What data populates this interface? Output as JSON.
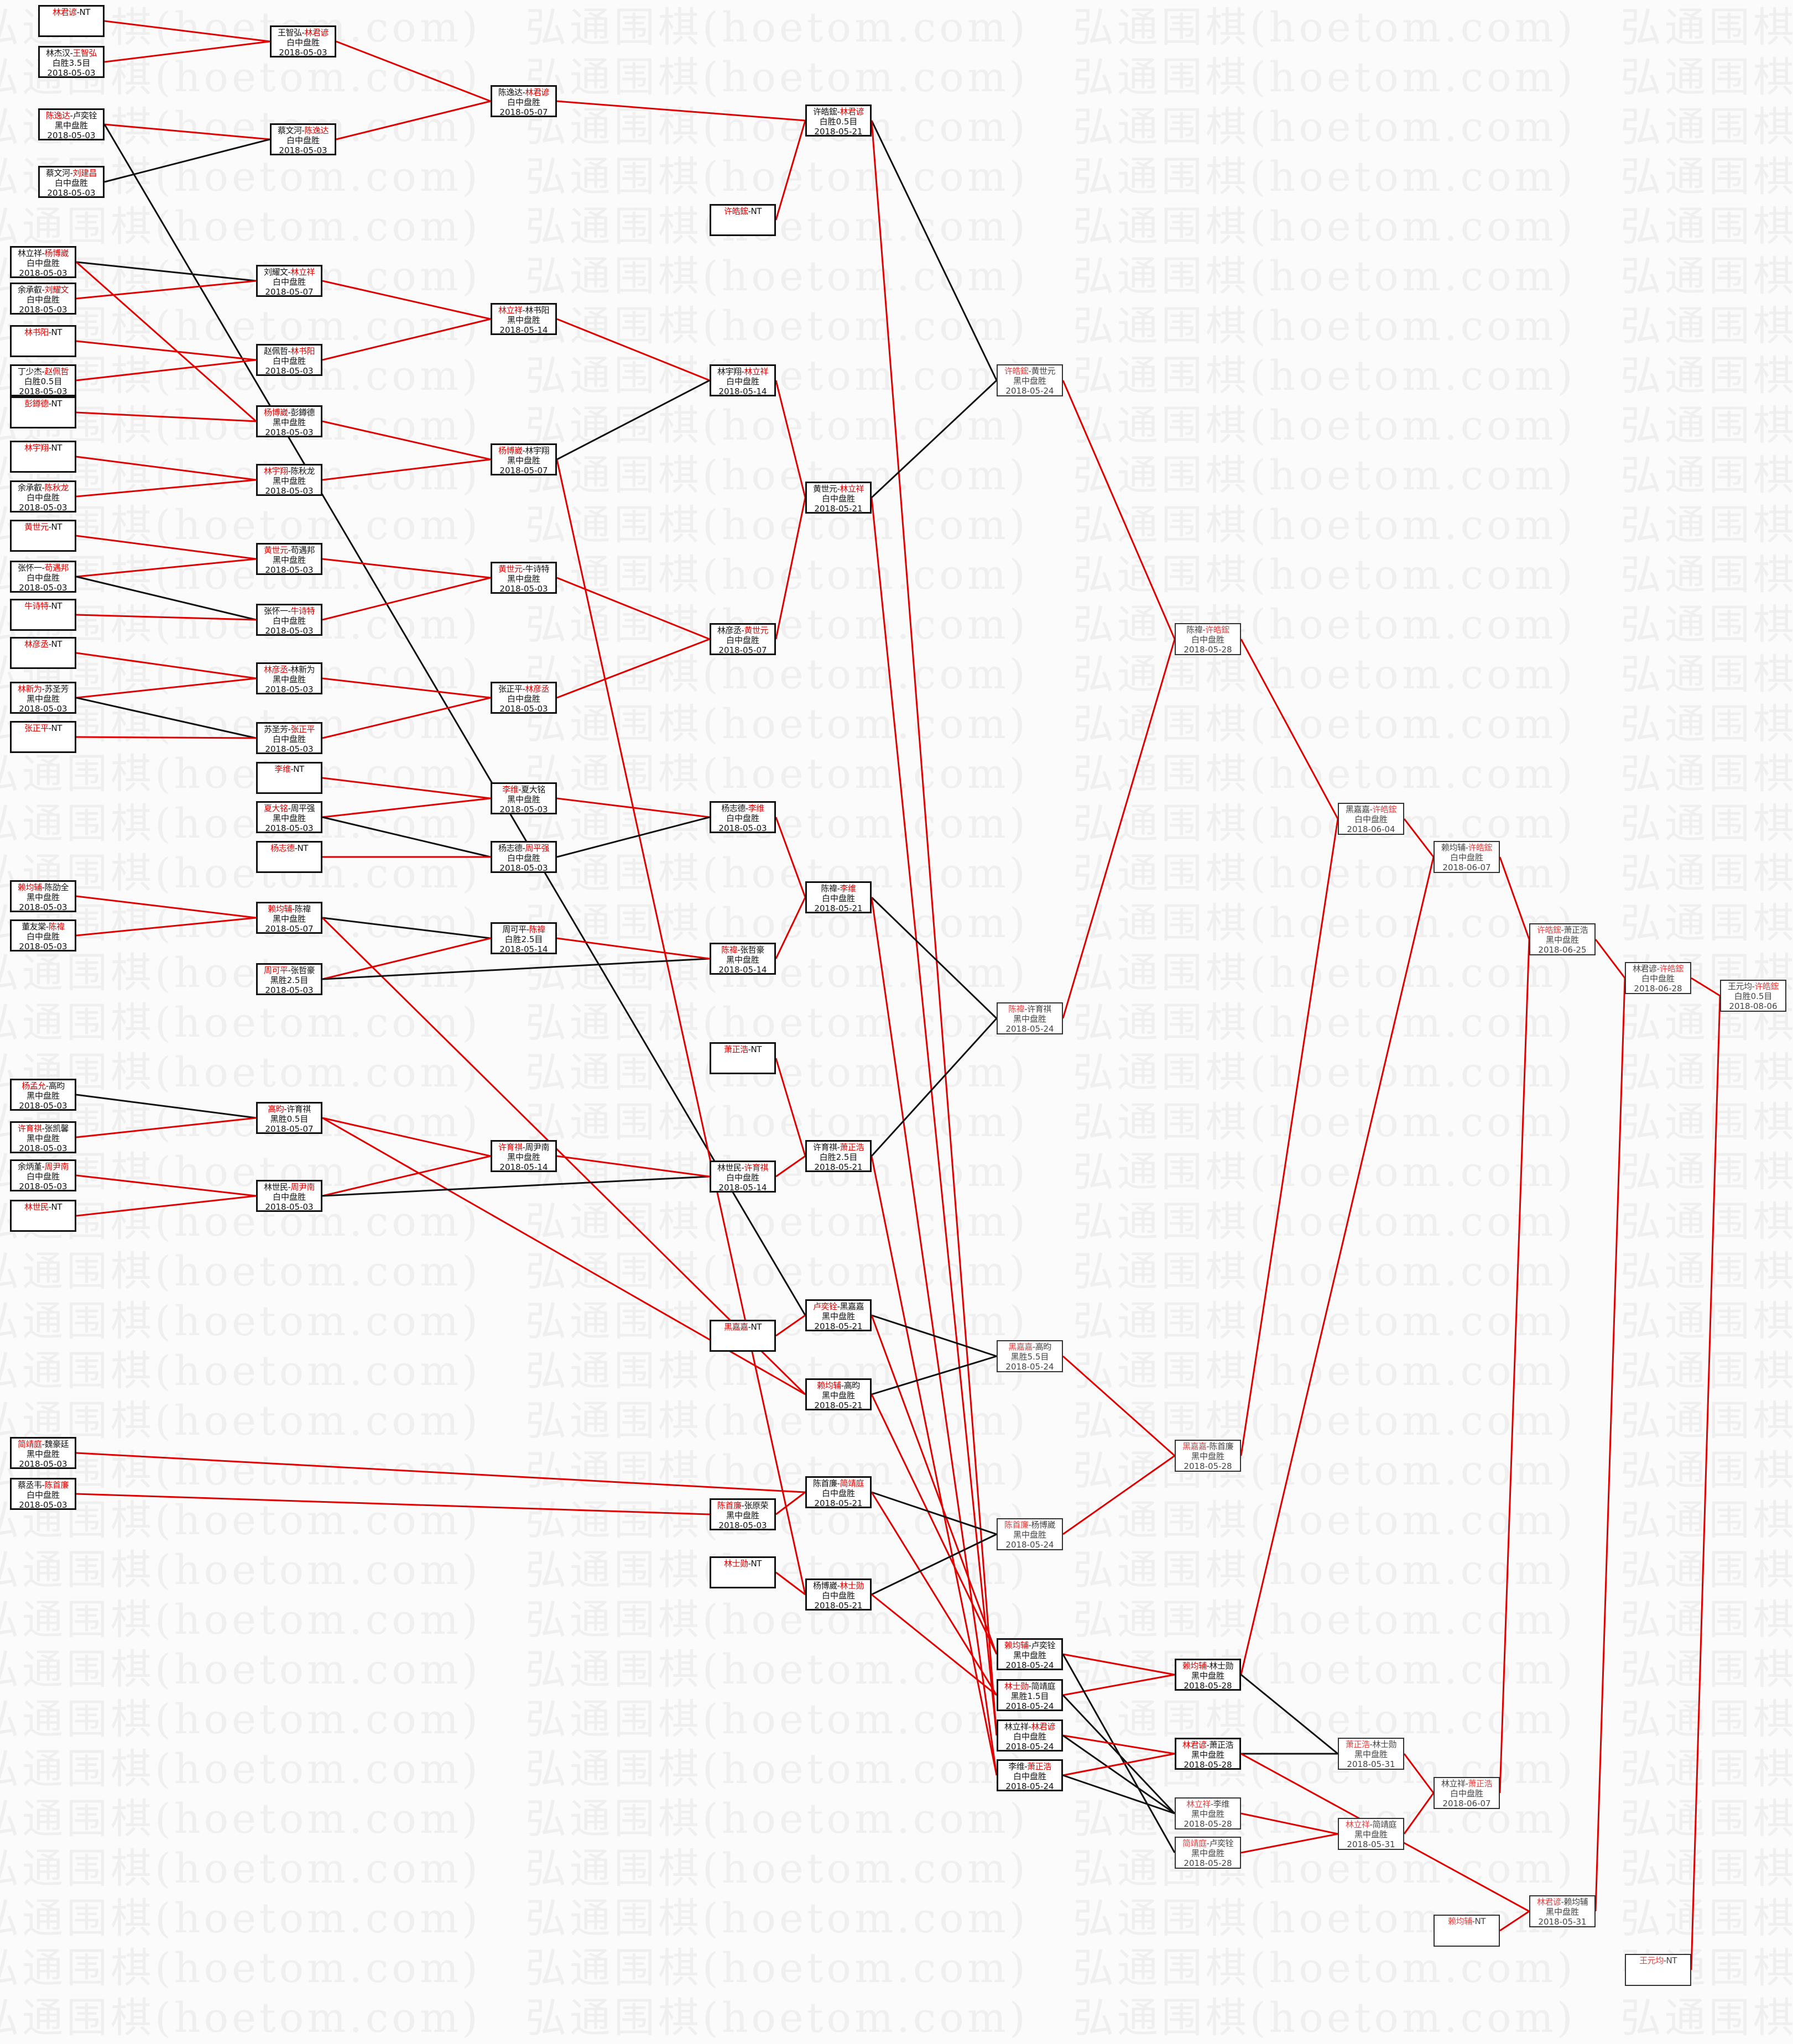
{
  "watermark": "弘通围棋(hoetom.com)",
  "colors": {
    "winner_text": "#e00000",
    "win_line": "#e00000",
    "lose_line": "#111111",
    "box_border": "#111111"
  },
  "matches": [
    {
      "id": "a1",
      "p1": "林君谚",
      "p2": "NT",
      "red": 1
    },
    {
      "id": "a2",
      "p1": "林杰汉",
      "p2": "王智弘",
      "red": 2,
      "result": "白胜3.5目",
      "date": "2018-05-03"
    },
    {
      "id": "a3",
      "p1": "陈逸达",
      "p2": "卢奕铨",
      "red": 1,
      "result": "黑中盘胜",
      "date": "2018-05-03"
    },
    {
      "id": "a4",
      "p1": "蔡文河",
      "p2": "刘建昌",
      "red": 2,
      "result": "白中盘胜",
      "date": "2018-05-03"
    },
    {
      "id": "a5",
      "p1": "林立祥",
      "p2": "杨博崴",
      "red": 2,
      "result": "白中盘胜",
      "date": "2018-05-03"
    },
    {
      "id": "a6",
      "p1": "余承叡",
      "p2": "刘耀文",
      "red": 2,
      "result": "白中盘胜",
      "date": "2018-05-03"
    },
    {
      "id": "a7",
      "p1": "林书阳",
      "p2": "NT",
      "red": 1
    },
    {
      "id": "a8",
      "p1": "丁少杰",
      "p2": "赵佩哲",
      "red": 2,
      "result": "白胜0.5目",
      "date": "2018-05-03"
    },
    {
      "id": "a9",
      "p1": "彭鐏德",
      "p2": "NT",
      "red": 1
    },
    {
      "id": "a10",
      "p1": "林宇翔",
      "p2": "NT",
      "red": 1
    },
    {
      "id": "a11",
      "p1": "余承叡",
      "p2": "陈秋龙",
      "red": 2,
      "result": "白中盘胜",
      "date": "2018-05-03"
    },
    {
      "id": "a12",
      "p1": "黄世元",
      "p2": "NT",
      "red": 1
    },
    {
      "id": "a13",
      "p1": "张怀一",
      "p2": "苟遇邦",
      "red": 2,
      "result": "白中盘胜",
      "date": "2018-05-03"
    },
    {
      "id": "a14",
      "p1": "牛诗特",
      "p2": "NT",
      "red": 1
    },
    {
      "id": "a15",
      "p1": "林彦丞",
      "p2": "NT",
      "red": 1
    },
    {
      "id": "a16",
      "p1": "林新为",
      "p2": "苏圣芳",
      "red": 1,
      "result": "黑中盘胜",
      "date": "2018-05-03"
    },
    {
      "id": "a17",
      "p1": "张正平",
      "p2": "NT",
      "red": 1
    },
    {
      "id": "a18",
      "p1": "赖均辅",
      "p2": "陈劭全",
      "red": 1,
      "result": "黑中盘胜",
      "date": "2018-05-03"
    },
    {
      "id": "a19",
      "p1": "董友棠",
      "p2": "陈禕",
      "red": 2,
      "result": "白中盘胜",
      "date": "2018-05-03"
    },
    {
      "id": "a20",
      "p1": "杨孟允",
      "p2": "高昀",
      "red": 1,
      "result": "黑中盘胜",
      "date": "2018-05-03"
    },
    {
      "id": "a21",
      "p1": "许育祺",
      "p2": "张凯馨",
      "red": 1,
      "result": "黑中盘胜",
      "date": "2018-05-03"
    },
    {
      "id": "a22",
      "p1": "余炳堇",
      "p2": "周尹南",
      "red": 2,
      "result": "白中盘胜",
      "date": "2018-05-03"
    },
    {
      "id": "a23",
      "p1": "林世民",
      "p2": "NT",
      "red": 1
    },
    {
      "id": "a24",
      "p1": "简靖庭",
      "p2": "魏豪廷",
      "red": 1,
      "result": "黑中盘胜",
      "date": "2018-05-03"
    },
    {
      "id": "a25",
      "p1": "蔡丞韦",
      "p2": "陈首廉",
      "red": 2,
      "result": "白中盘胜",
      "date": "2018-05-03"
    },
    {
      "id": "b1",
      "p1": "王智弘",
      "p2": "林君谚",
      "red": 2,
      "result": "白中盘胜",
      "date": "2018-05-03"
    },
    {
      "id": "b2",
      "p1": "蔡文河",
      "p2": "陈逸达",
      "red": 2,
      "result": "白中盘胜",
      "date": "2018-05-03"
    },
    {
      "id": "b3",
      "p1": "刘耀文",
      "p2": "林立祥",
      "red": 2,
      "result": "白中盘胜",
      "date": "2018-05-07"
    },
    {
      "id": "b4",
      "p1": "赵佩哲",
      "p2": "林书阳",
      "red": 2,
      "result": "白中盘胜",
      "date": "2018-05-03"
    },
    {
      "id": "b5",
      "p1": "杨博崴",
      "p2": "彭鐏德",
      "red": 1,
      "result": "黑中盘胜",
      "date": "2018-05-03"
    },
    {
      "id": "b6",
      "p1": "林宇翔",
      "p2": "陈秋龙",
      "red": 1,
      "result": "黑中盘胜",
      "date": "2018-05-03"
    },
    {
      "id": "b7",
      "p1": "黄世元",
      "p2": "苟遇邦",
      "red": 1,
      "result": "黑中盘胜",
      "date": "2018-05-03"
    },
    {
      "id": "b8",
      "p1": "张怀一",
      "p2": "牛诗特",
      "red": 2,
      "result": "白中盘胜",
      "date": "2018-05-03"
    },
    {
      "id": "b9",
      "p1": "林彦丞",
      "p2": "林新为",
      "red": 1,
      "result": "黑中盘胜",
      "date": "2018-05-03"
    },
    {
      "id": "b10",
      "p1": "苏圣芳",
      "p2": "张正平",
      "red": 2,
      "result": "白中盘胜",
      "date": "2018-05-03"
    },
    {
      "id": "b11",
      "p1": "李维",
      "p2": "NT",
      "red": 1
    },
    {
      "id": "b12",
      "p1": "夏大铭",
      "p2": "周平强",
      "red": 1,
      "result": "黑中盘胜",
      "date": "2018-05-03"
    },
    {
      "id": "b13",
      "p1": "杨志德",
      "p2": "NT",
      "red": 1
    },
    {
      "id": "b14",
      "p1": "赖均辅",
      "p2": "陈禕",
      "red": 1,
      "result": "黑中盘胜",
      "date": "2018-05-07"
    },
    {
      "id": "b15",
      "p1": "周可平",
      "p2": "张哲豪",
      "red": 1,
      "result": "黑胜2.5目",
      "date": "2018-05-03"
    },
    {
      "id": "b16",
      "p1": "高昀",
      "p2": "许育祺",
      "red": 1,
      "result": "黑胜0.5目",
      "date": "2018-05-07"
    },
    {
      "id": "b17",
      "p1": "林世民",
      "p2": "周尹南",
      "red": 2,
      "result": "白中盘胜",
      "date": "2018-05-03"
    },
    {
      "id": "c1",
      "p1": "陈逸达",
      "p2": "林君谚",
      "red": 2,
      "result": "白中盘胜",
      "date": "2018-05-07"
    },
    {
      "id": "c2",
      "p1": "林立祥",
      "p2": "林书阳",
      "red": 1,
      "result": "黑中盘胜",
      "date": "2018-05-14"
    },
    {
      "id": "c3",
      "p1": "杨博崴",
      "p2": "林宇翔",
      "red": 1,
      "result": "黑中盘胜",
      "date": "2018-05-07"
    },
    {
      "id": "c4",
      "p1": "黄世元",
      "p2": "牛诗特",
      "red": 1,
      "result": "黑中盘胜",
      "date": "2018-05-03"
    },
    {
      "id": "c5",
      "p1": "张正平",
      "p2": "林彦丞",
      "red": 2,
      "result": "白中盘胜",
      "date": "2018-05-03"
    },
    {
      "id": "c6",
      "p1": "李维",
      "p2": "夏大铭",
      "red": 1,
      "result": "黑中盘胜",
      "date": "2018-05-03"
    },
    {
      "id": "c7",
      "p1": "杨志德",
      "p2": "周平强",
      "red": 2,
      "result": "白中盘胜",
      "date": "2018-05-03"
    },
    {
      "id": "c8",
      "p1": "周可平",
      "p2": "陈禕",
      "red": 2,
      "result": "白胜2.5目",
      "date": "2018-05-14"
    },
    {
      "id": "c9",
      "p1": "许育祺",
      "p2": "周尹南",
      "red": 1,
      "result": "黑中盘胜",
      "date": "2018-05-14"
    },
    {
      "id": "d1",
      "p1": "许皓鋐",
      "p2": "NT",
      "red": 1
    },
    {
      "id": "d2",
      "p1": "林宇翔",
      "p2": "林立祥",
      "red": 2,
      "result": "白中盘胜",
      "date": "2018-05-14"
    },
    {
      "id": "d3",
      "p1": "林彦丞",
      "p2": "黄世元",
      "red": 2,
      "result": "白中盘胜",
      "date": "2018-05-07"
    },
    {
      "id": "d4",
      "p1": "杨志德",
      "p2": "李维",
      "red": 2,
      "result": "白中盘胜",
      "date": "2018-05-03"
    },
    {
      "id": "d5",
      "p1": "陈禕",
      "p2": "张哲豪",
      "red": 1,
      "result": "黑中盘胜",
      "date": "2018-05-14"
    },
    {
      "id": "d6",
      "p1": "萧正浩",
      "p2": "NT",
      "red": 1
    },
    {
      "id": "d7",
      "p1": "林世民",
      "p2": "许育祺",
      "red": 2,
      "result": "白中盘胜",
      "date": "2018-05-14"
    },
    {
      "id": "d8",
      "p1": "黑嘉嘉",
      "p2": "NT",
      "red": 1
    },
    {
      "id": "d9",
      "p1": "陈首廉",
      "p2": "张原荣",
      "red": 1,
      "result": "黑中盘胜",
      "date": "2018-05-03"
    },
    {
      "id": "d10",
      "p1": "林士勋",
      "p2": "NT",
      "red": 1
    },
    {
      "id": "e1",
      "p1": "许皓鋐",
      "p2": "林君谚",
      "red": 2,
      "result": "白胜0.5目",
      "date": "2018-05-21"
    },
    {
      "id": "e2",
      "p1": "黄世元",
      "p2": "林立祥",
      "red": 2,
      "result": "白中盘胜",
      "date": "2018-05-21"
    },
    {
      "id": "e3",
      "p1": "陈禕",
      "p2": "李维",
      "red": 2,
      "result": "白中盘胜",
      "date": "2018-05-21"
    },
    {
      "id": "e4",
      "p1": "许育祺",
      "p2": "萧正浩",
      "red": 2,
      "result": "白胜2.5目",
      "date": "2018-05-21"
    },
    {
      "id": "e5",
      "p1": "卢奕铨",
      "p2": "黑嘉嘉",
      "red": 1,
      "result": "黑中盘胜",
      "date": "2018-05-21"
    },
    {
      "id": "e6",
      "p1": "赖均辅",
      "p2": "高昀",
      "red": 1,
      "result": "黑中盘胜",
      "date": "2018-05-21"
    },
    {
      "id": "e7",
      "p1": "陈首廉",
      "p2": "简靖庭",
      "red": 2,
      "result": "白中盘胜",
      "date": "2018-05-21"
    },
    {
      "id": "e8",
      "p1": "杨博崴",
      "p2": "林士勋",
      "red": 2,
      "result": "白中盘胜",
      "date": "2018-05-21"
    },
    {
      "id": "f1",
      "p1": "许皓鋐",
      "p2": "黄世元",
      "red": 1,
      "result": "黑中盘胜",
      "date": "2018-05-24"
    },
    {
      "id": "f2",
      "p1": "陈禕",
      "p2": "许育祺",
      "red": 1,
      "result": "黑中盘胜",
      "date": "2018-05-24"
    },
    {
      "id": "f3",
      "p1": "黑嘉嘉",
      "p2": "高昀",
      "red": 1,
      "result": "黑胜5.5目",
      "date": "2018-05-24"
    },
    {
      "id": "f4",
      "p1": "陈首廉",
      "p2": "杨博崴",
      "red": 1,
      "result": "黑中盘胜",
      "date": "2018-05-24"
    },
    {
      "id": "f5",
      "p1": "赖均辅",
      "p2": "卢奕铨",
      "red": 1,
      "result": "黑中盘胜",
      "date": "2018-05-24"
    },
    {
      "id": "f6",
      "p1": "林士勋",
      "p2": "简靖庭",
      "red": 1,
      "result": "黑胜1.5目",
      "date": "2018-05-24"
    },
    {
      "id": "f7",
      "p1": "林立祥",
      "p2": "林君谚",
      "red": 2,
      "result": "白中盘胜",
      "date": "2018-05-24"
    },
    {
      "id": "f8",
      "p1": "李维",
      "p2": "萧正浩",
      "red": 2,
      "result": "白中盘胜",
      "date": "2018-05-24"
    },
    {
      "id": "g1",
      "p1": "陈禕",
      "p2": "许皓鋐",
      "red": 2,
      "result": "白中盘胜",
      "date": "2018-05-28"
    },
    {
      "id": "g2",
      "p1": "黑嘉嘉",
      "p2": "陈首廉",
      "red": 1,
      "result": "黑中盘胜",
      "date": "2018-05-28"
    },
    {
      "id": "g3",
      "p1": "赖均辅",
      "p2": "林士勋",
      "red": 1,
      "result": "黑中盘胜",
      "date": "2018-05-28"
    },
    {
      "id": "g4",
      "p1": "林君谚",
      "p2": "萧正浩",
      "red": 1,
      "result": "黑中盘胜",
      "date": "2018-05-28"
    },
    {
      "id": "g5",
      "p1": "林立祥",
      "p2": "李维",
      "red": 1,
      "result": "黑中盘胜",
      "date": "2018-05-28"
    },
    {
      "id": "g6",
      "p1": "简靖庭",
      "p2": "卢奕铨",
      "red": 1,
      "result": "黑中盘胜",
      "date": "2018-05-28"
    },
    {
      "id": "h1",
      "p1": "黑嘉嘉",
      "p2": "许皓鋐",
      "red": 2,
      "result": "白中盘胜",
      "date": "2018-06-04"
    },
    {
      "id": "h2",
      "p1": "萧正浩",
      "p2": "林士勋",
      "red": 1,
      "result": "黑中盘胜",
      "date": "2018-05-31"
    },
    {
      "id": "h3",
      "p1": "林立祥",
      "p2": "简靖庭",
      "red": 1,
      "result": "黑中盘胜",
      "date": "2018-05-31"
    },
    {
      "id": "i1",
      "p1": "赖均辅",
      "p2": "许皓鋐",
      "red": 2,
      "result": "白中盘胜",
      "date": "2018-06-07"
    },
    {
      "id": "i2",
      "p1": "林立祥",
      "p2": "萧正浩",
      "red": 2,
      "result": "白中盘胜",
      "date": "2018-06-07"
    },
    {
      "id": "i3",
      "p1": "赖均辅",
      "p2": "NT",
      "red": 1
    },
    {
      "id": "j1",
      "p1": "许皓鋐",
      "p2": "萧正浩",
      "red": 1,
      "result": "黑中盘胜",
      "date": "2018-06-25"
    },
    {
      "id": "j2",
      "p1": "林君谚",
      "p2": "赖均辅",
      "red": 1,
      "result": "黑中盘胜",
      "date": "2018-05-31"
    },
    {
      "id": "k1",
      "p1": "林君谚",
      "p2": "许皓鋐",
      "red": 2,
      "result": "白中盘胜",
      "date": "2018-06-28"
    },
    {
      "id": "k2",
      "p1": "王元均",
      "p2": "NT",
      "red": 1
    },
    {
      "id": "l1",
      "p1": "王元均",
      "p2": "许皓鋐",
      "red": 2,
      "result": "白胜0.5目",
      "date": "2018-08-06"
    }
  ],
  "links": [
    [
      "a1",
      "b1",
      "win"
    ],
    [
      "a2",
      "b1",
      "win"
    ],
    [
      "a3",
      "b2",
      "win"
    ],
    [
      "a3",
      "e5",
      "lose"
    ],
    [
      "a4",
      "b2",
      "lose"
    ],
    [
      "b1",
      "c1",
      "win"
    ],
    [
      "b2",
      "c1",
      "win"
    ],
    [
      "c1",
      "e1",
      "win"
    ],
    [
      "d1",
      "e1",
      "win"
    ],
    [
      "e1",
      "f1",
      "lose"
    ],
    [
      "e1",
      "f7",
      "win"
    ],
    [
      "a5",
      "b3",
      "lose"
    ],
    [
      "a5",
      "b5",
      "win"
    ],
    [
      "a6",
      "b3",
      "win"
    ],
    [
      "a7",
      "b4",
      "win"
    ],
    [
      "a8",
      "b4",
      "win"
    ],
    [
      "a9",
      "b5",
      "win"
    ],
    [
      "a10",
      "b6",
      "win"
    ],
    [
      "a11",
      "b6",
      "win"
    ],
    [
      "b3",
      "c2",
      "win"
    ],
    [
      "b4",
      "c2",
      "win"
    ],
    [
      "b5",
      "c3",
      "win"
    ],
    [
      "b6",
      "c3",
      "win"
    ],
    [
      "c2",
      "d2",
      "win"
    ],
    [
      "c3",
      "d2",
      "lose"
    ],
    [
      "c3",
      "e8",
      "win"
    ],
    [
      "a12",
      "b7",
      "win"
    ],
    [
      "a13",
      "b7",
      "win"
    ],
    [
      "a13",
      "b8",
      "lose"
    ],
    [
      "a14",
      "b8",
      "win"
    ],
    [
      "a15",
      "b9",
      "win"
    ],
    [
      "a16",
      "b9",
      "win"
    ],
    [
      "a16",
      "b10",
      "lose"
    ],
    [
      "a17",
      "b10",
      "win"
    ],
    [
      "b7",
      "c4",
      "win"
    ],
    [
      "b8",
      "c4",
      "win"
    ],
    [
      "b9",
      "c5",
      "win"
    ],
    [
      "b10",
      "c5",
      "win"
    ],
    [
      "c4",
      "d3",
      "win"
    ],
    [
      "c5",
      "d3",
      "win"
    ],
    [
      "d2",
      "e2",
      "win"
    ],
    [
      "d3",
      "e2",
      "win"
    ],
    [
      "e2",
      "f1",
      "lose"
    ],
    [
      "e2",
      "f7",
      "win"
    ],
    [
      "b11",
      "c6",
      "win"
    ],
    [
      "b12",
      "c6",
      "win"
    ],
    [
      "b12",
      "c7",
      "lose"
    ],
    [
      "b13",
      "c7",
      "win"
    ],
    [
      "c6",
      "d4",
      "win"
    ],
    [
      "c7",
      "d4",
      "lose"
    ],
    [
      "a18",
      "b14",
      "win"
    ],
    [
      "a19",
      "b14",
      "win"
    ],
    [
      "b14",
      "c8",
      "lose"
    ],
    [
      "b14",
      "e6",
      "win"
    ],
    [
      "b15",
      "c8",
      "win"
    ],
    [
      "b15",
      "d5",
      "lose"
    ],
    [
      "c8",
      "d5",
      "win"
    ],
    [
      "d4",
      "e3",
      "win"
    ],
    [
      "d5",
      "e3",
      "win"
    ],
    [
      "e3",
      "f2",
      "lose"
    ],
    [
      "e3",
      "f8",
      "win"
    ],
    [
      "a20",
      "b16",
      "lose"
    ],
    [
      "a21",
      "b16",
      "win"
    ],
    [
      "a22",
      "b17",
      "win"
    ],
    [
      "a23",
      "b17",
      "win"
    ],
    [
      "b16",
      "c9",
      "win"
    ],
    [
      "b16",
      "e6",
      "win"
    ],
    [
      "b17",
      "c9",
      "win"
    ],
    [
      "b17",
      "d7",
      "lose"
    ],
    [
      "c9",
      "d7",
      "win"
    ],
    [
      "d6",
      "e4",
      "win"
    ],
    [
      "d7",
      "e4",
      "win"
    ],
    [
      "e4",
      "f2",
      "lose"
    ],
    [
      "e4",
      "f8",
      "win"
    ],
    [
      "d8",
      "e5",
      "win"
    ],
    [
      "e5",
      "f3",
      "lose"
    ],
    [
      "e5",
      "f5",
      "win"
    ],
    [
      "e6",
      "f3",
      "lose"
    ],
    [
      "e6",
      "f5",
      "win"
    ],
    [
      "a24",
      "e7",
      "win"
    ],
    [
      "a25",
      "d9",
      "win"
    ],
    [
      "d9",
      "e7",
      "win"
    ],
    [
      "d10",
      "e8",
      "win"
    ],
    [
      "e7",
      "f4",
      "lose"
    ],
    [
      "e7",
      "f6",
      "win"
    ],
    [
      "e8",
      "f4",
      "lose"
    ],
    [
      "e8",
      "f6",
      "win"
    ],
    [
      "f1",
      "g1",
      "win"
    ],
    [
      "f2",
      "g1",
      "win"
    ],
    [
      "f3",
      "g2",
      "win"
    ],
    [
      "f4",
      "g2",
      "win"
    ],
    [
      "f5",
      "g3",
      "win"
    ],
    [
      "f6",
      "g3",
      "win"
    ],
    [
      "f5",
      "g6",
      "lose"
    ],
    [
      "f6",
      "g5",
      "lose"
    ],
    [
      "f7",
      "g4",
      "win"
    ],
    [
      "f7",
      "g5",
      "lose"
    ],
    [
      "f8",
      "g4",
      "win"
    ],
    [
      "f8",
      "g5",
      "lose"
    ],
    [
      "g1",
      "h1",
      "win"
    ],
    [
      "g2",
      "h1",
      "win"
    ],
    [
      "h1",
      "i1",
      "win"
    ],
    [
      "g3",
      "i1",
      "win"
    ],
    [
      "g3",
      "h2",
      "lose"
    ],
    [
      "g4",
      "h2",
      "lose"
    ],
    [
      "g4",
      "j2",
      "win"
    ],
    [
      "g5",
      "h3",
      "win"
    ],
    [
      "g6",
      "h3",
      "win"
    ],
    [
      "h2",
      "i2",
      "win"
    ],
    [
      "h3",
      "i2",
      "win"
    ],
    [
      "i1",
      "j1",
      "win"
    ],
    [
      "i2",
      "j1",
      "win"
    ],
    [
      "i3",
      "j2",
      "win"
    ],
    [
      "j1",
      "k1",
      "win"
    ],
    [
      "j2",
      "k1",
      "win"
    ],
    [
      "k1",
      "l1",
      "win"
    ],
    [
      "k2",
      "l1",
      "win"
    ]
  ]
}
